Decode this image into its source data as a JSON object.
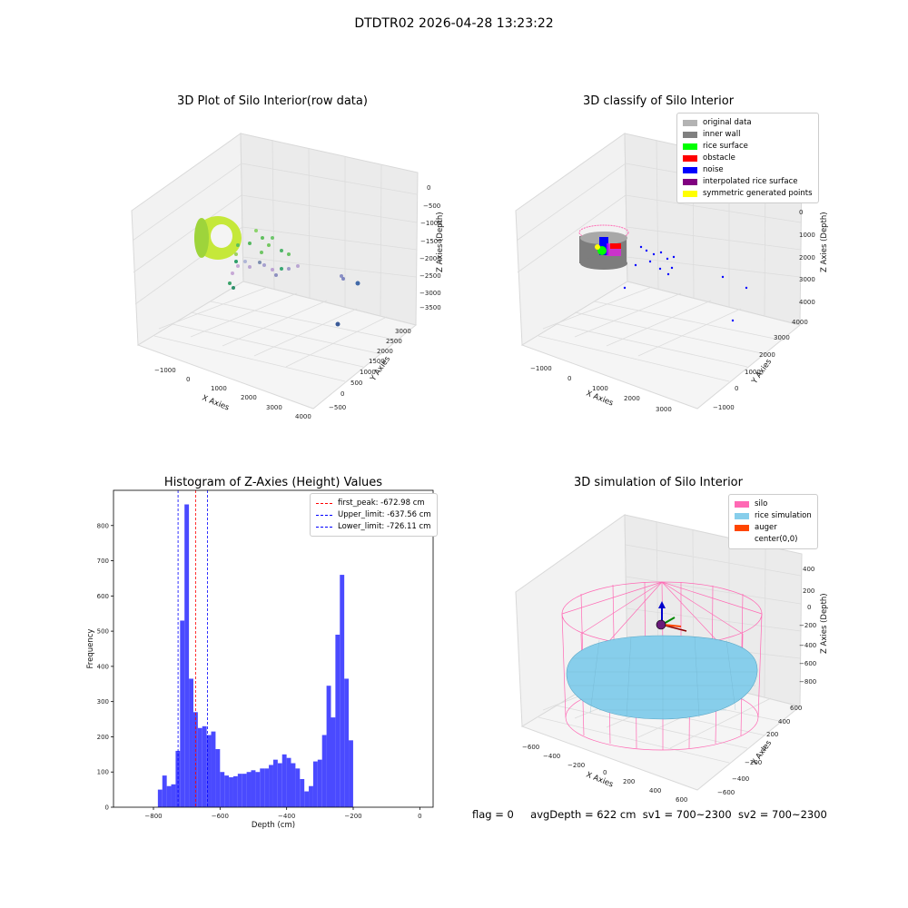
{
  "suptitle": "DTDTR02 2026-04-28 13:23:22",
  "panels": {
    "p1": {
      "title": "3D Plot of Silo Interior(row data)",
      "xlabel": "X Axies",
      "ylabel": "Y Axies",
      "zlabel": "Z Axies (Depth)",
      "xticks": [
        "−1000",
        "0",
        "1000",
        "2000",
        "3000",
        "4000"
      ],
      "yticks": [
        "−500",
        "0",
        "500",
        "1000",
        "1500",
        "2000",
        "2500",
        "3000"
      ],
      "zticks": [
        "0",
        "−500",
        "−1000",
        "−1500",
        "−2000",
        "−2500",
        "−3000",
        "−3500"
      ]
    },
    "p2": {
      "title": "3D classify of Silo Interior",
      "xlabel": "X Axies",
      "ylabel": "Y Axies",
      "zlabel": "Z Axies (Depth)",
      "xticks": [
        "−1000",
        "0",
        "1000",
        "2000",
        "3000"
      ],
      "yticks": [
        "−1000",
        "0",
        "1000",
        "2000",
        "3000",
        "4000"
      ],
      "zticks": [
        "000",
        "0",
        "1000",
        "2000",
        "3000",
        "4000"
      ],
      "legend": [
        {
          "label": "original data",
          "color": "#b3b3b3"
        },
        {
          "label": "inner wall",
          "color": "#808080"
        },
        {
          "label": "rice surface",
          "color": "#00ff00"
        },
        {
          "label": "obstacle",
          "color": "#ff0000"
        },
        {
          "label": "noise",
          "color": "#0000ff"
        },
        {
          "label": "interpolated rice surface",
          "color": "#800080"
        },
        {
          "label": "symmetric generated points",
          "color": "#ffff00"
        }
      ]
    },
    "p4": {
      "title": "3D simulation of Silo Interior",
      "xlabel": "X Axies",
      "ylabel": "Y Axies",
      "zlabel": "Z Axies (Depth)",
      "xticks": [
        "−600",
        "−400",
        "−200",
        "0",
        "200",
        "400",
        "600"
      ],
      "yticks": [
        "−600",
        "−400",
        "−200",
        "0",
        "200",
        "400",
        "600"
      ],
      "zticks": [
        "400",
        "200",
        "0",
        "−200",
        "−400",
        "−600",
        "−800"
      ],
      "legend": [
        {
          "label": "silo",
          "color": "#ff69b4"
        },
        {
          "label": "rice simulation",
          "color": "#87ceeb"
        },
        {
          "label": "auger",
          "color": "#ff4500"
        },
        {
          "label": "center(0,0)",
          "color": "#ffffff"
        }
      ]
    }
  },
  "status": {
    "flag": "flag = 0",
    "avg": "avgDepth = 622 cm",
    "sv1": "sv1 = 700~2300",
    "sv2": "sv2 = 700~2300"
  },
  "chart_data": [
    {
      "type": "scatter",
      "title": "3D Plot of Silo Interior(row data)",
      "xlabel": "X Axies",
      "ylabel": "Y Axies",
      "zlabel": "Z Axies (Depth)",
      "xlim": [
        -1500,
        4000
      ],
      "ylim": [
        -500,
        3000
      ],
      "zlim": [
        -3500,
        0
      ]
    },
    {
      "type": "scatter",
      "title": "3D classify of Silo Interior",
      "xlabel": "X Axies",
      "ylabel": "Y Axies",
      "zlabel": "Z Axies (Depth)",
      "xlim": [
        -1500,
        3500
      ],
      "ylim": [
        -1000,
        4000
      ],
      "zlim": [
        -4000,
        0
      ],
      "series_names": [
        "original data",
        "inner wall",
        "rice surface",
        "obstacle",
        "noise",
        "interpolated rice surface",
        "symmetric generated points"
      ]
    },
    {
      "type": "bar",
      "title": "Histogram of Z-Axies (Height) Values",
      "xlabel": "Depth (cm)",
      "ylabel": "Frequency",
      "xlim": [
        -920,
        40
      ],
      "ylim": [
        0,
        900
      ],
      "xticks": [
        -800,
        -600,
        -400,
        -200,
        0
      ],
      "yticks": [
        0,
        100,
        200,
        300,
        400,
        500,
        600,
        700,
        800
      ],
      "bin_width": 13.33,
      "bin_start": -786.7,
      "values": [
        50,
        90,
        60,
        65,
        160,
        530,
        860,
        365,
        270,
        225,
        230,
        205,
        215,
        165,
        100,
        90,
        85,
        88,
        95,
        95,
        100,
        105,
        100,
        110,
        110,
        120,
        135,
        125,
        150,
        140,
        125,
        110,
        80,
        45,
        60,
        130,
        135,
        205,
        345,
        255,
        490,
        660,
        365,
        190
      ],
      "vlines": [
        {
          "label": "first_peak: -672.98 cm",
          "value": -672.98,
          "color": "#ff0000"
        },
        {
          "label": "Upper_limit: -637.56 cm",
          "value": -637.56,
          "color": "#0000ff"
        },
        {
          "label": "Lower_limit: -726.11 cm",
          "value": -726.11,
          "color": "#0000ff"
        }
      ],
      "bar_color": "#4a4aff"
    },
    {
      "type": "scatter",
      "title": "3D simulation of Silo Interior",
      "xlabel": "X Axies",
      "ylabel": "Y Axies",
      "zlabel": "Z Axies (Depth)",
      "xlim": [
        -700,
        700
      ],
      "ylim": [
        -700,
        700
      ],
      "zlim": [
        -900,
        450
      ],
      "series_names": [
        "silo",
        "rice simulation",
        "auger",
        "center(0,0)"
      ]
    }
  ]
}
